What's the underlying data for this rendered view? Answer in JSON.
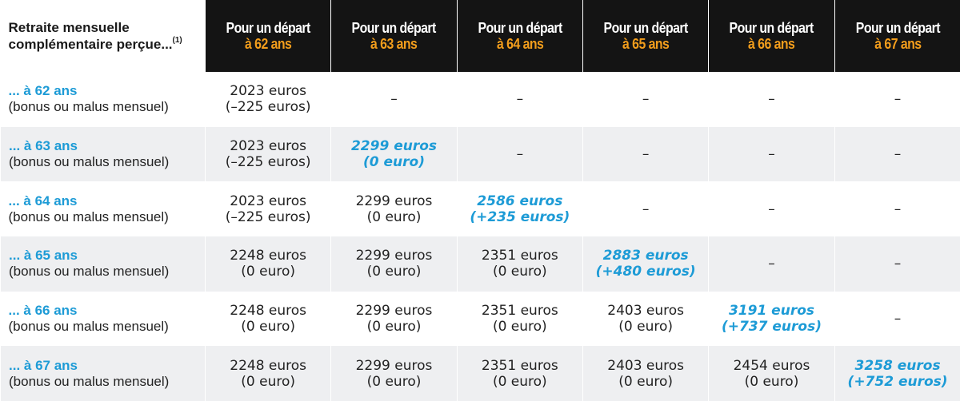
{
  "header": {
    "corner_line1": "Retraite mensuelle",
    "corner_line2": "complémentaire perçue...",
    "corner_note": "(1)",
    "columns": [
      {
        "line1": "Pour un départ",
        "line2": "à 62 ans"
      },
      {
        "line1": "Pour un départ",
        "line2": "à 63 ans"
      },
      {
        "line1": "Pour un départ",
        "line2": "à 64 ans"
      },
      {
        "line1": "Pour un départ",
        "line2": "à 65 ans"
      },
      {
        "line1": "Pour un départ",
        "line2": "à 66 ans"
      },
      {
        "line1": "Pour un départ",
        "line2": "à 67 ans"
      }
    ]
  },
  "rows": [
    {
      "label1": "... à 62 ans",
      "label2": "(bonus ou malus mensuel)",
      "cells": [
        {
          "line1": "2023 euros",
          "line2": "(–225 euros)"
        },
        {
          "line1": "–",
          "line2": ""
        },
        {
          "line1": "–",
          "line2": ""
        },
        {
          "line1": "–",
          "line2": ""
        },
        {
          "line1": "–",
          "line2": ""
        },
        {
          "line1": "–",
          "line2": ""
        }
      ]
    },
    {
      "label1": "... à 63 ans",
      "label2": "(bonus ou malus mensuel)",
      "cells": [
        {
          "line1": "2023 euros",
          "line2": "(–225 euros)"
        },
        {
          "line1": "2299 euros",
          "line2": "(0 euro)"
        },
        {
          "line1": "–",
          "line2": ""
        },
        {
          "line1": "–",
          "line2": ""
        },
        {
          "line1": "–",
          "line2": ""
        },
        {
          "line1": "–",
          "line2": ""
        }
      ]
    },
    {
      "label1": "... à 64 ans",
      "label2": "(bonus ou malus mensuel)",
      "cells": [
        {
          "line1": "2023 euros",
          "line2": "(–225 euros)"
        },
        {
          "line1": "2299 euros",
          "line2": "(0 euro)"
        },
        {
          "line1": "2586 euros",
          "line2": "(+235 euros)"
        },
        {
          "line1": "–",
          "line2": ""
        },
        {
          "line1": "–",
          "line2": ""
        },
        {
          "line1": "–",
          "line2": ""
        }
      ]
    },
    {
      "label1": "... à 65 ans",
      "label2": "(bonus ou malus mensuel)",
      "cells": [
        {
          "line1": "2248 euros",
          "line2": "(0 euro)"
        },
        {
          "line1": "2299 euros",
          "line2": "(0 euro)"
        },
        {
          "line1": "2351 euros",
          "line2": "(0 euro)"
        },
        {
          "line1": "2883 euros",
          "line2": "(+480 euros)"
        },
        {
          "line1": "–",
          "line2": ""
        },
        {
          "line1": "–",
          "line2": ""
        }
      ]
    },
    {
      "label1": "... à 66 ans",
      "label2": "(bonus ou malus mensuel)",
      "cells": [
        {
          "line1": "2248 euros",
          "line2": "(0 euro)"
        },
        {
          "line1": "2299 euros",
          "line2": "(0 euro)"
        },
        {
          "line1": "2351 euros",
          "line2": "(0 euro)"
        },
        {
          "line1": "2403 euros",
          "line2": "(0 euro)"
        },
        {
          "line1": "3191 euros",
          "line2": "(+737 euros)"
        },
        {
          "line1": "–",
          "line2": ""
        }
      ]
    },
    {
      "label1": "... à 67 ans",
      "label2": "(bonus ou malus mensuel)",
      "cells": [
        {
          "line1": "2248 euros",
          "line2": "(0 euro)"
        },
        {
          "line1": "2299 euros",
          "line2": "(0 euro)"
        },
        {
          "line1": "2351 euros",
          "line2": "(0 euro)"
        },
        {
          "line1": "2403 euros",
          "line2": "(0 euro)"
        },
        {
          "line1": "2454 euros",
          "line2": "(0 euro)"
        },
        {
          "line1": "3258 euros",
          "line2": "(+752 euros)"
        }
      ]
    }
  ],
  "colors": {
    "header_bg": "#141414",
    "header_accent": "#f29d1c",
    "highlight": "#1d9bd6",
    "alt_row_bg": "#eeeff1"
  }
}
